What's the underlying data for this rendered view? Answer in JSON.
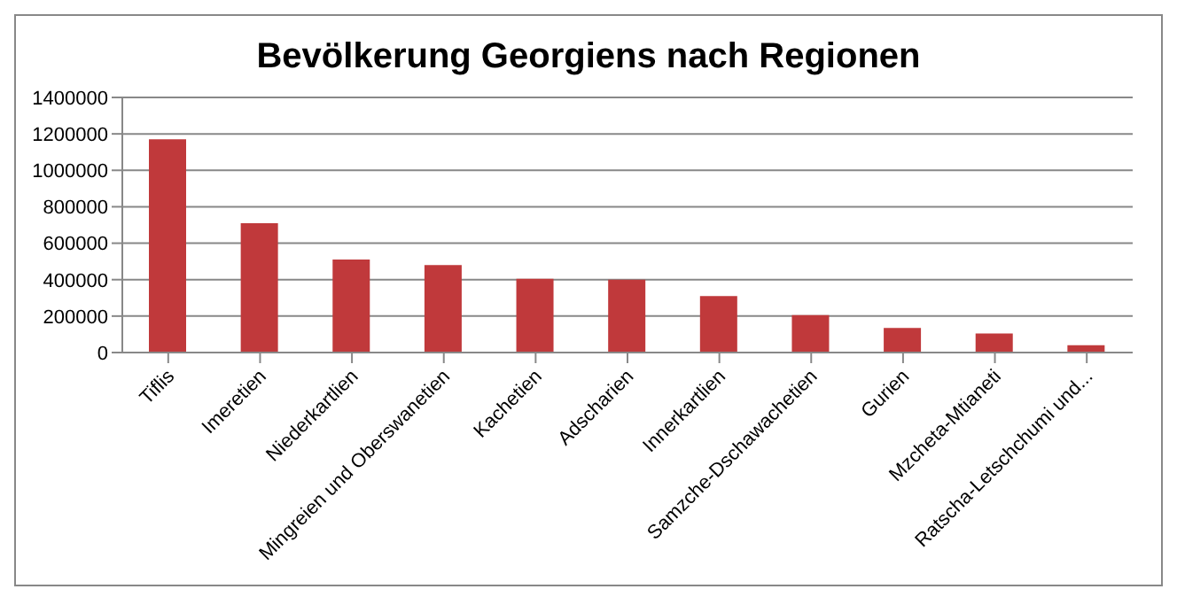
{
  "chart_data": {
    "type": "bar",
    "title": "Bevölkerung Georgiens nach Regionen",
    "categories": [
      "Tiflis",
      "Imeretien",
      "Niederkartlien",
      "Mingreien und Oberswanetien",
      "Kachetien",
      "Adscharien",
      "Innerkartlien",
      "Samzche-Dschawachetien",
      "Gurien",
      "Mzcheta-Mtianeti",
      "Ratscha-Letschchumi und..."
    ],
    "values": [
      1170000,
      710000,
      510000,
      480000,
      405000,
      400000,
      310000,
      205000,
      135000,
      105000,
      40000
    ],
    "color": "#c0393b",
    "ylim": [
      0,
      1400000
    ],
    "yticks": [
      0,
      200000,
      400000,
      600000,
      800000,
      1000000,
      1200000,
      1400000
    ],
    "grid": "y",
    "legend": false
  }
}
